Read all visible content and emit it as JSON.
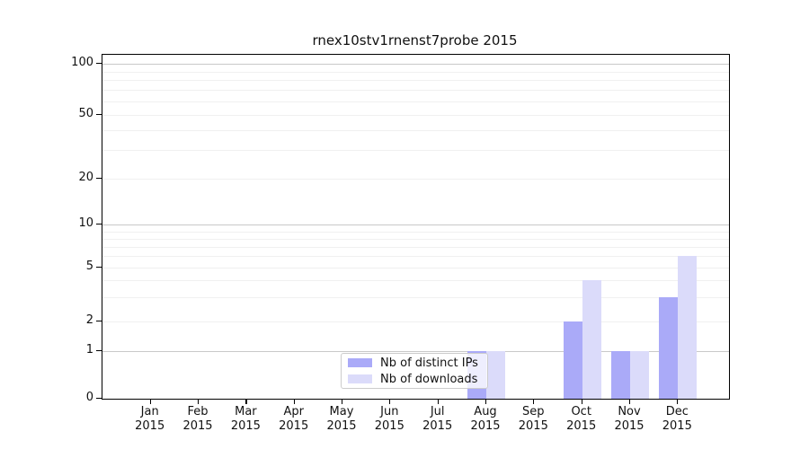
{
  "chart_data": {
    "type": "bar",
    "title": "rnex10stv1rnenst7probe 2015",
    "categories": [
      "Jan 2015",
      "Feb 2015",
      "Mar 2015",
      "Apr 2015",
      "May 2015",
      "Jun 2015",
      "Jul 2015",
      "Aug 2015",
      "Sep 2015",
      "Oct 2015",
      "Nov 2015",
      "Dec 2015"
    ],
    "series": [
      {
        "name": "Nb of distinct IPs",
        "color": "#aaaaf8",
        "values": [
          0,
          0,
          0,
          0,
          0,
          0,
          0,
          1,
          0,
          2,
          1,
          3
        ]
      },
      {
        "name": "Nb of downloads",
        "color": "#dbdbfa",
        "values": [
          0,
          0,
          0,
          0,
          0,
          0,
          0,
          1,
          0,
          4,
          1,
          6
        ]
      }
    ],
    "xlabel": "",
    "ylabel": "",
    "yscale": "symlog",
    "ylim": [
      0,
      100
    ],
    "yticks": [
      0,
      1,
      2,
      5,
      10,
      20,
      50,
      100
    ],
    "grid": "on",
    "legend_position": "lower center",
    "colors": {
      "major_gridline": "#c9c9c9",
      "minor_gridline": "#f0f0f0",
      "spine": "#000000",
      "text": "#111111"
    }
  }
}
